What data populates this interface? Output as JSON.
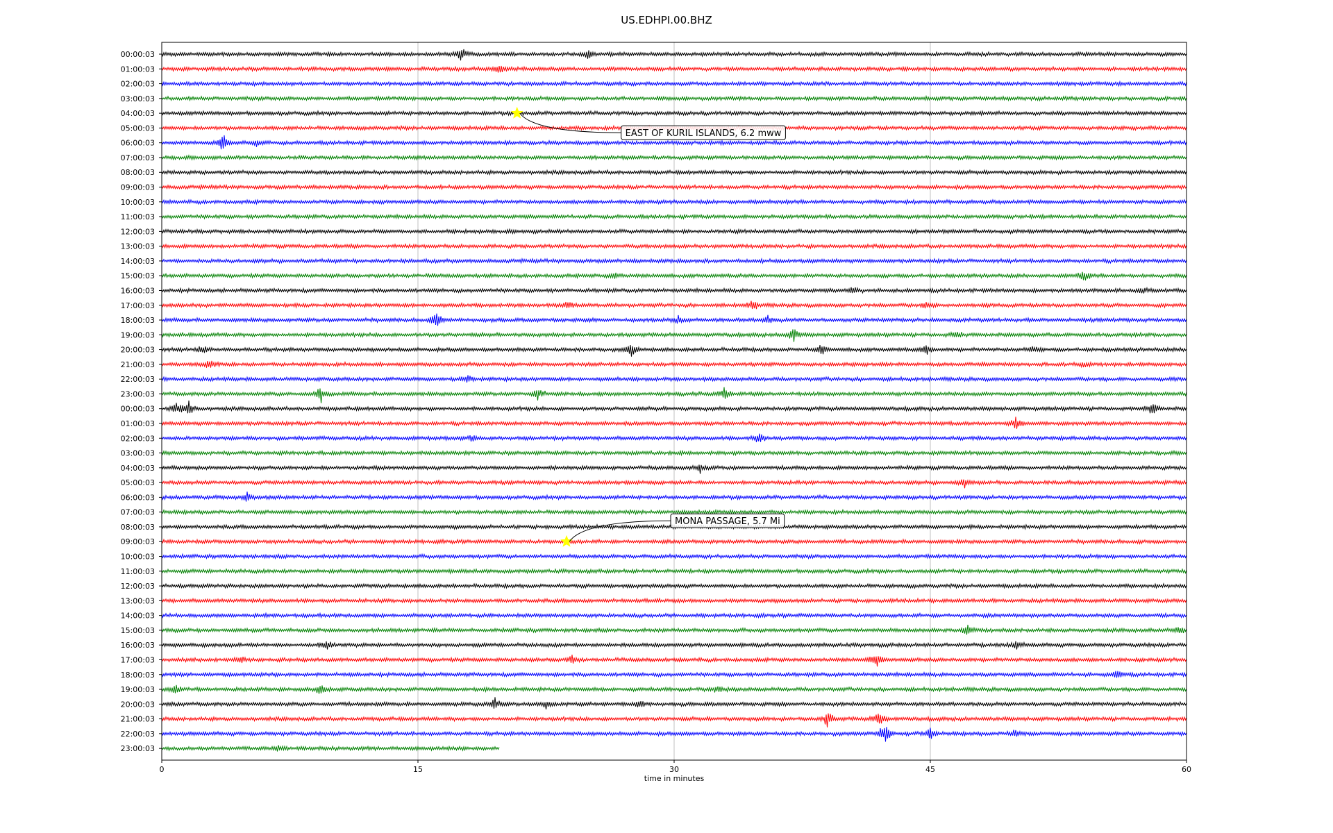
{
  "chart_data": {
    "type": "line",
    "title": "US.EDHPI.00.BHZ",
    "xlabel": "time in minutes",
    "ylabel": "",
    "xlim": [
      0,
      60
    ],
    "x_ticks": [
      0,
      15,
      30,
      45,
      60
    ],
    "grid": "vertical",
    "trace_colors": [
      "#000000",
      "#ff0000",
      "#0000ff",
      "#008000"
    ],
    "row_labels": [
      "00:00:03",
      "01:00:03",
      "02:00:03",
      "03:00:03",
      "04:00:03",
      "05:00:03",
      "06:00:03",
      "07:00:03",
      "08:00:03",
      "09:00:03",
      "10:00:03",
      "11:00:03",
      "12:00:03",
      "13:00:03",
      "14:00:03",
      "15:00:03",
      "16:00:03",
      "17:00:03",
      "18:00:03",
      "19:00:03",
      "20:00:03",
      "21:00:03",
      "22:00:03",
      "23:00:03",
      "00:00:03",
      "01:00:03",
      "02:00:03",
      "03:00:03",
      "04:00:03",
      "05:00:03",
      "06:00:03",
      "07:00:03",
      "08:00:03",
      "09:00:03",
      "10:00:03",
      "11:00:03",
      "12:00:03",
      "13:00:03",
      "14:00:03",
      "15:00:03",
      "16:00:03",
      "17:00:03",
      "18:00:03",
      "19:00:03",
      "20:00:03",
      "21:00:03",
      "22:00:03",
      "23:00:03"
    ],
    "last_row_end_minute": 19.8,
    "events": [
      {
        "row": 0,
        "minute": 17.5,
        "amp": 0.8
      },
      {
        "row": 0,
        "minute": 25.0,
        "amp": 0.6
      },
      {
        "row": 1,
        "minute": 19.8,
        "amp": 0.7
      },
      {
        "row": 6,
        "minute": 3.6,
        "amp": 1.0
      },
      {
        "row": 6,
        "minute": 5.6,
        "amp": 0.5
      },
      {
        "row": 15,
        "minute": 26.5,
        "amp": 0.5
      },
      {
        "row": 15,
        "minute": 54.0,
        "amp": 0.7
      },
      {
        "row": 16,
        "minute": 40.5,
        "amp": 0.4
      },
      {
        "row": 16,
        "minute": 57.5,
        "amp": 0.4
      },
      {
        "row": 17,
        "minute": 23.8,
        "amp": 0.5
      },
      {
        "row": 17,
        "minute": 34.6,
        "amp": 0.6
      },
      {
        "row": 17,
        "minute": 44.8,
        "amp": 0.5
      },
      {
        "row": 18,
        "minute": 16.1,
        "amp": 1.1
      },
      {
        "row": 18,
        "minute": 30.2,
        "amp": 0.5
      },
      {
        "row": 18,
        "minute": 35.5,
        "amp": 0.5
      },
      {
        "row": 19,
        "minute": 37.0,
        "amp": 0.9
      },
      {
        "row": 19,
        "minute": 46.5,
        "amp": 0.4
      },
      {
        "row": 20,
        "minute": 2.4,
        "amp": 0.6
      },
      {
        "row": 20,
        "minute": 27.5,
        "amp": 0.9
      },
      {
        "row": 20,
        "minute": 38.6,
        "amp": 0.7
      },
      {
        "row": 20,
        "minute": 44.8,
        "amp": 0.7
      },
      {
        "row": 20,
        "minute": 51.0,
        "amp": 0.5
      },
      {
        "row": 21,
        "minute": 2.8,
        "amp": 0.6
      },
      {
        "row": 21,
        "minute": 54.0,
        "amp": 0.3
      },
      {
        "row": 22,
        "minute": 18.0,
        "amp": 0.5
      },
      {
        "row": 23,
        "minute": 9.3,
        "amp": 1.0
      },
      {
        "row": 23,
        "minute": 22.0,
        "amp": 0.9
      },
      {
        "row": 23,
        "minute": 32.9,
        "amp": 0.9
      },
      {
        "row": 24,
        "minute": 0.8,
        "amp": 0.9
      },
      {
        "row": 24,
        "minute": 1.6,
        "amp": 1.1
      },
      {
        "row": 24,
        "minute": 58.0,
        "amp": 0.8
      },
      {
        "row": 25,
        "minute": 50.0,
        "amp": 0.8
      },
      {
        "row": 26,
        "minute": 18.2,
        "amp": 0.5
      },
      {
        "row": 26,
        "minute": 35.0,
        "amp": 0.9
      },
      {
        "row": 28,
        "minute": 31.5,
        "amp": 0.6
      },
      {
        "row": 29,
        "minute": 47.0,
        "amp": 0.6
      },
      {
        "row": 30,
        "minute": 5.0,
        "amp": 0.5
      },
      {
        "row": 39,
        "minute": 47.2,
        "amp": 0.8
      },
      {
        "row": 39,
        "minute": 59.6,
        "amp": 0.7
      },
      {
        "row": 40,
        "minute": 9.6,
        "amp": 0.7
      },
      {
        "row": 40,
        "minute": 50.0,
        "amp": 0.5
      },
      {
        "row": 41,
        "minute": 4.6,
        "amp": 0.5
      },
      {
        "row": 41,
        "minute": 24.0,
        "amp": 0.6
      },
      {
        "row": 41,
        "minute": 41.8,
        "amp": 1.1
      },
      {
        "row": 42,
        "minute": 56.0,
        "amp": 0.7
      },
      {
        "row": 43,
        "minute": 0.8,
        "amp": 0.6
      },
      {
        "row": 43,
        "minute": 9.3,
        "amp": 0.6
      },
      {
        "row": 43,
        "minute": 32.6,
        "amp": 0.5
      },
      {
        "row": 44,
        "minute": 19.5,
        "amp": 1.0
      },
      {
        "row": 44,
        "minute": 22.5,
        "amp": 0.7
      },
      {
        "row": 44,
        "minute": 28.0,
        "amp": 0.5
      },
      {
        "row": 45,
        "minute": 39.0,
        "amp": 1.1
      },
      {
        "row": 45,
        "minute": 42.0,
        "amp": 1.1
      },
      {
        "row": 46,
        "minute": 42.3,
        "amp": 1.5
      },
      {
        "row": 46,
        "minute": 45.0,
        "amp": 0.8
      },
      {
        "row": 46,
        "minute": 50.0,
        "amp": 0.6
      },
      {
        "row": 47,
        "minute": 6.8,
        "amp": 0.5
      }
    ],
    "annotations": [
      {
        "text": "EAST OF KURIL ISLANDS, 6.2 mww",
        "row": 4,
        "minute": 20.8
      },
      {
        "text": "MONA PASSAGE, 5.7 Mi",
        "row": 33,
        "minute": 23.7
      }
    ]
  }
}
